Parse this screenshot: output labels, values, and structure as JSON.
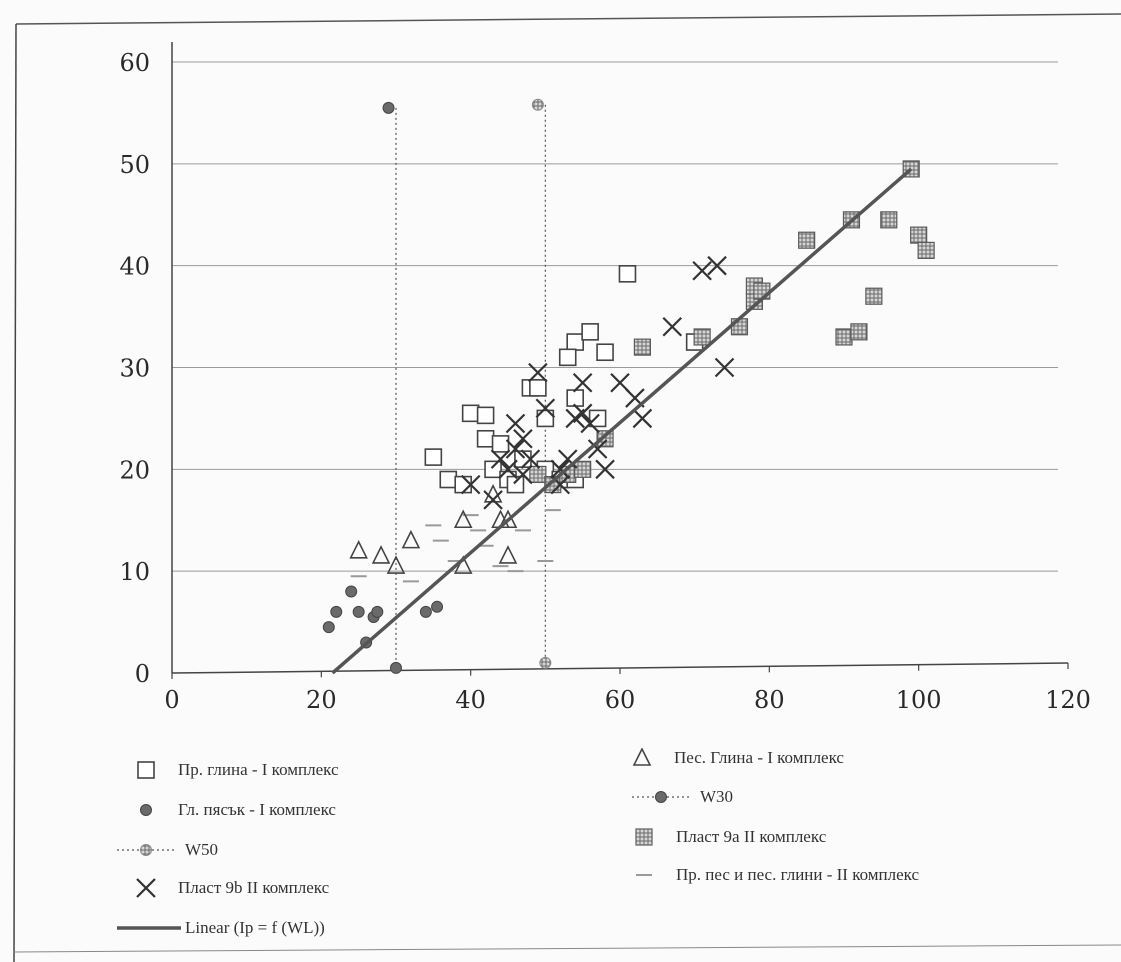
{
  "chart_data": {
    "type": "scatter",
    "title": "",
    "xlabel": "",
    "ylabel": "",
    "xlim": [
      0,
      120
    ],
    "ylim": [
      0,
      60
    ],
    "x_ticks": [
      0,
      20,
      40,
      60,
      80,
      100,
      120
    ],
    "y_ticks": [
      0,
      10,
      20,
      30,
      40,
      50,
      60
    ],
    "grid": "horizontal",
    "legend_position": "bottom",
    "series": [
      {
        "name": "Пр. глина - I комплекс",
        "marker": "square-open",
        "color": "#444444",
        "points": [
          [
            35,
            21.2
          ],
          [
            37,
            19
          ],
          [
            39,
            18.5
          ],
          [
            40,
            25.5
          ],
          [
            42,
            25.3
          ],
          [
            42,
            23
          ],
          [
            43,
            20
          ],
          [
            44,
            22.5
          ],
          [
            45,
            19
          ],
          [
            46,
            18.5
          ],
          [
            47,
            21
          ],
          [
            48,
            28
          ],
          [
            49,
            28
          ],
          [
            50,
            25
          ],
          [
            50,
            20
          ],
          [
            52,
            19
          ],
          [
            54,
            19
          ],
          [
            54,
            27
          ],
          [
            54,
            32.5
          ],
          [
            56,
            33.5
          ],
          [
            57,
            25
          ],
          [
            58,
            31.5
          ],
          [
            61,
            39.2
          ],
          [
            70,
            32.5
          ],
          [
            53,
            31
          ]
        ]
      },
      {
        "name": "Пес. Глина - I комплекс",
        "marker": "triangle-open",
        "color": "#444444",
        "points": [
          [
            25,
            12
          ],
          [
            28,
            11.5
          ],
          [
            30,
            10.5
          ],
          [
            32,
            13
          ],
          [
            39,
            15
          ],
          [
            39,
            10.5
          ],
          [
            43,
            17.5
          ],
          [
            44,
            15
          ],
          [
            45,
            15
          ],
          [
            45,
            11.5
          ]
        ]
      },
      {
        "name": "Гл. пясък - I комплекс",
        "marker": "circle-filled",
        "color": "#6a6a6a",
        "points": [
          [
            21,
            4.5
          ],
          [
            22,
            6
          ],
          [
            24,
            8
          ],
          [
            25,
            6
          ],
          [
            26,
            3
          ],
          [
            27,
            5.5
          ],
          [
            27.5,
            6
          ],
          [
            34,
            6
          ],
          [
            35.5,
            6.5
          ]
        ]
      },
      {
        "name": "W30",
        "marker": "circle-filled",
        "color": "#555555",
        "points": [
          [
            29,
            55.5
          ],
          [
            30,
            0.5
          ]
        ]
      },
      {
        "name": "W50",
        "marker": "circle-hatched",
        "color": "#999999",
        "points": [
          [
            49,
            55.8
          ],
          [
            50,
            1
          ]
        ]
      },
      {
        "name": "Пласт 9а II комплекс",
        "marker": "square-hatched",
        "color": "#777777",
        "points": [
          [
            49,
            19.5
          ],
          [
            51,
            18.5
          ],
          [
            53,
            19.5
          ],
          [
            55,
            20
          ],
          [
            58,
            23
          ],
          [
            63,
            32
          ],
          [
            71,
            33
          ],
          [
            76,
            34
          ],
          [
            78,
            36.5
          ],
          [
            78,
            38
          ],
          [
            79,
            37.5
          ],
          [
            85,
            42.5
          ],
          [
            90,
            33
          ],
          [
            91,
            44.5
          ],
          [
            92,
            33.5
          ],
          [
            94,
            37
          ],
          [
            96,
            44.5
          ],
          [
            100,
            43
          ],
          [
            101,
            41.5
          ],
          [
            99,
            49.5
          ]
        ]
      },
      {
        "name": "Пр. пес и пес. глини - II комплекс",
        "marker": "dash",
        "color": "#999999",
        "points": [
          [
            25,
            9.5
          ],
          [
            32,
            9
          ],
          [
            35,
            14.5
          ],
          [
            36,
            13
          ],
          [
            38,
            11
          ],
          [
            40,
            15.5
          ],
          [
            41,
            14
          ],
          [
            42,
            12.5
          ],
          [
            44,
            10.5
          ],
          [
            46,
            10
          ],
          [
            47,
            14
          ],
          [
            50,
            11
          ],
          [
            51,
            16
          ]
        ]
      },
      {
        "name": "Пласт 9b II комплекс",
        "marker": "x",
        "color": "#333333",
        "points": [
          [
            40,
            18.5
          ],
          [
            43,
            17
          ],
          [
            44,
            21
          ],
          [
            45,
            20
          ],
          [
            46,
            22
          ],
          [
            46,
            24.5
          ],
          [
            47,
            23
          ],
          [
            47,
            19.5
          ],
          [
            48,
            21
          ],
          [
            49,
            29.5
          ],
          [
            50,
            26
          ],
          [
            52,
            20
          ],
          [
            52,
            18.5
          ],
          [
            53,
            21
          ],
          [
            54,
            25
          ],
          [
            55,
            25.5
          ],
          [
            55,
            28.5
          ],
          [
            56,
            24.5
          ],
          [
            57,
            22
          ],
          [
            58,
            20
          ],
          [
            60,
            28.5
          ],
          [
            62,
            27
          ],
          [
            63,
            25
          ],
          [
            67,
            34
          ],
          [
            71,
            39.5
          ],
          [
            73,
            40
          ],
          [
            74,
            30
          ]
        ]
      }
    ],
    "fit_line": {
      "name": "Linear (Ip = f (WL))",
      "x": [
        21.5,
        99
      ],
      "y": [
        0,
        49.5
      ]
    },
    "vertical_lines": [
      {
        "series": "W30",
        "x": 30,
        "y_range": [
          0.5,
          55.5
        ]
      },
      {
        "series": "W50",
        "x": 50,
        "y_range": [
          1,
          55.8
        ]
      }
    ]
  },
  "legend": [
    {
      "key": "Пр. глина - I комплекс",
      "marker": "square-open"
    },
    {
      "key": "Пес. Глина - I комплекс",
      "marker": "triangle-open"
    },
    {
      "key": "Гл. пясък - I комплекс",
      "marker": "circle-filled"
    },
    {
      "key": "W30",
      "marker": "w30"
    },
    {
      "key": "W50",
      "marker": "w50"
    },
    {
      "key": "Пласт 9а II комплекс",
      "marker": "square-hatched"
    },
    {
      "key": "Пласт 9b II комплекс",
      "marker": "x"
    },
    {
      "key": "Пр. пес и пес. глини - II комплекс",
      "marker": "dash"
    },
    {
      "key": "Linear (Ip = f (WL))",
      "marker": "line"
    }
  ]
}
